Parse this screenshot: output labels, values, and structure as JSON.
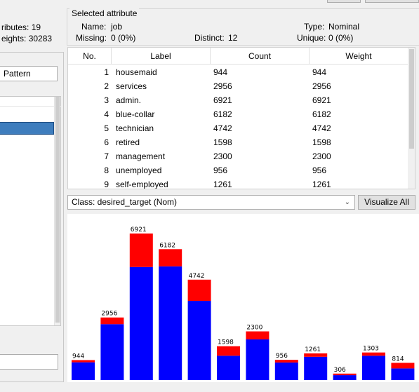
{
  "left": {
    "attributes_label": "ributes:",
    "attributes_value": "19",
    "weights_label": "eights:",
    "weights_value": "30283",
    "pattern_button": "Pattern"
  },
  "selected_attribute": {
    "group_title": "Selected attribute",
    "name_label": "Name:",
    "name_value": "job",
    "type_label": "Type:",
    "type_value": "Nominal",
    "missing_label": "Missing:",
    "missing_value": "0 (0%)",
    "distinct_label": "Distinct:",
    "distinct_value": "12",
    "unique_label": "Unique:",
    "unique_value": "0 (0%)"
  },
  "table": {
    "columns": [
      "No.",
      "Label",
      "Count",
      "Weight"
    ],
    "rows": [
      {
        "no": "1",
        "label": "housemaid",
        "count": "944",
        "weight": "944"
      },
      {
        "no": "2",
        "label": "services",
        "count": "2956",
        "weight": "2956"
      },
      {
        "no": "3",
        "label": "admin.",
        "count": "6921",
        "weight": "6921"
      },
      {
        "no": "4",
        "label": "blue-collar",
        "count": "6182",
        "weight": "6182"
      },
      {
        "no": "5",
        "label": "technician",
        "count": "4742",
        "weight": "4742"
      },
      {
        "no": "6",
        "label": "retired",
        "count": "1598",
        "weight": "1598"
      },
      {
        "no": "7",
        "label": "management",
        "count": "2300",
        "weight": "2300"
      },
      {
        "no": "8",
        "label": "unemployed",
        "count": "956",
        "weight": "956"
      },
      {
        "no": "9",
        "label": "self-employed",
        "count": "1261",
        "weight": "1261"
      }
    ]
  },
  "class_selector": {
    "value": "Class: desired_target (Nom)",
    "visualize_button": "Visualize All"
  },
  "colors": {
    "class_a": "#0000ff",
    "class_b": "#ff0000",
    "selection": "#3e7dbd"
  },
  "chart_data": {
    "type": "bar",
    "stacked": true,
    "categories": [
      "housemaid",
      "services",
      "admin.",
      "blue-collar",
      "technician",
      "retired",
      "management",
      "unemployed",
      "self-employed",
      "",
      "",
      ""
    ],
    "totals": [
      944,
      2956,
      6921,
      6182,
      4742,
      1598,
      2300,
      956,
      1261,
      306,
      1303,
      814
    ],
    "series": [
      {
        "color": "#0000ff",
        "values": [
          840,
          2640,
          5340,
          5370,
          3740,
          1150,
          1920,
          830,
          1100,
          230,
          1150,
          550
        ]
      },
      {
        "color": "#ff0000",
        "values": [
          104,
          316,
          1581,
          812,
          1002,
          448,
          380,
          126,
          161,
          76,
          153,
          264
        ]
      }
    ],
    "ylim": [
      0,
      6921
    ]
  }
}
